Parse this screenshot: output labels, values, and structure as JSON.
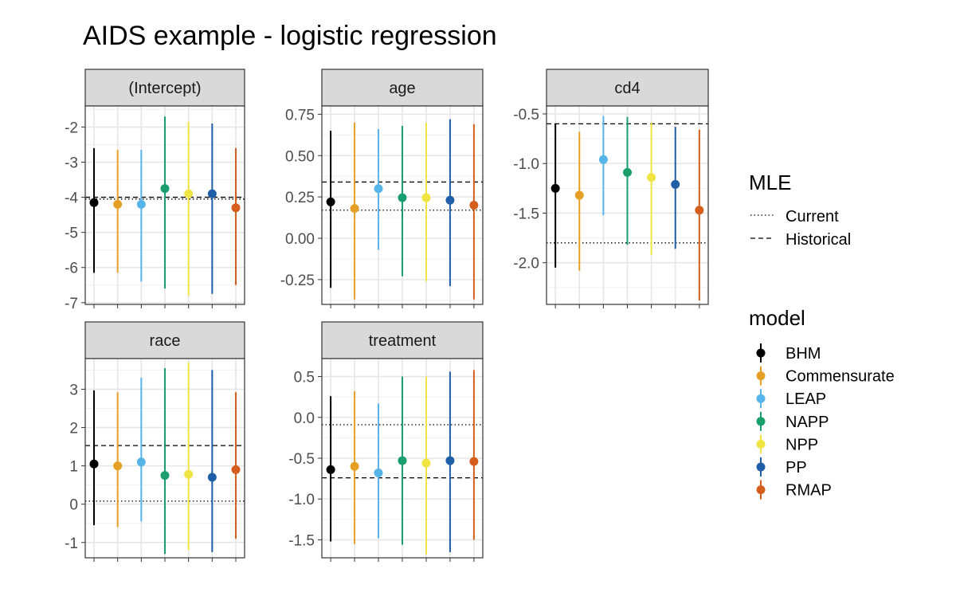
{
  "title": "AIDS example - logistic regression",
  "chart_data": {
    "type": "interval-dot",
    "title": "AIDS example - logistic regression",
    "xlabel": "",
    "ylabel": "",
    "legend_position": "right",
    "models": [
      {
        "name": "BHM",
        "color": "#000000"
      },
      {
        "name": "Commensurate",
        "color": "#E69F25"
      },
      {
        "name": "LEAP",
        "color": "#56B4E9"
      },
      {
        "name": "NAPP",
        "color": "#1A9E6E"
      },
      {
        "name": "NPP",
        "color": "#F0E442"
      },
      {
        "name": "PP",
        "color": "#1F5FA8"
      },
      {
        "name": "RMAP",
        "color": "#D55E1C"
      }
    ],
    "mle_legend": {
      "title": "MLE",
      "items": [
        {
          "name": "Current",
          "linetype": "dotted"
        },
        {
          "name": "Historical",
          "linetype": "dashed"
        }
      ]
    },
    "model_legend_title": "model",
    "panels": [
      {
        "label": "(Intercept)",
        "ylim": [
          -7.05,
          -1.4
        ],
        "ticks": [
          -2,
          -3,
          -4,
          -5,
          -6,
          -7
        ],
        "tick_labels": [
          "-2",
          "-3",
          "-4",
          "-5",
          "-6",
          "-7"
        ],
        "mle_historical": -4.0,
        "mle_current": -4.05,
        "estimates": [
          -4.15,
          -4.2,
          -4.2,
          -3.75,
          -3.9,
          -3.9,
          -4.3
        ],
        "lower": [
          -6.15,
          -6.15,
          -6.4,
          -6.6,
          -6.8,
          -6.75,
          -6.5
        ],
        "upper": [
          -2.6,
          -2.65,
          -2.65,
          -1.7,
          -1.85,
          -1.9,
          -2.6
        ]
      },
      {
        "label": "age",
        "ylim": [
          -0.4,
          0.8
        ],
        "ticks": [
          0.75,
          0.5,
          0.25,
          0.0,
          -0.25
        ],
        "tick_labels": [
          "0.75",
          "0.50",
          "0.25",
          "0.00",
          "-0.25"
        ],
        "mle_historical": 0.34,
        "mle_current": 0.17,
        "estimates": [
          0.22,
          0.18,
          0.3,
          0.245,
          0.245,
          0.23,
          0.2
        ],
        "lower": [
          -0.3,
          -0.37,
          -0.07,
          -0.23,
          -0.26,
          -0.29,
          -0.37
        ],
        "upper": [
          0.65,
          0.7,
          0.66,
          0.68,
          0.7,
          0.72,
          0.69
        ]
      },
      {
        "label": "cd4",
        "ylim": [
          -2.42,
          -0.42
        ],
        "ticks": [
          -0.5,
          -1.0,
          -1.5,
          -2.0
        ],
        "tick_labels": [
          "-0.5",
          "-1.0",
          "-1.5",
          "-2.0"
        ],
        "mle_historical": -0.6,
        "mle_current": -1.8,
        "estimates": [
          -1.25,
          -1.32,
          -0.96,
          -1.09,
          -1.14,
          -1.21,
          -1.47
        ],
        "lower": [
          -2.05,
          -2.08,
          -1.52,
          -1.82,
          -1.92,
          -1.86,
          -2.38
        ],
        "upper": [
          -0.6,
          -0.68,
          -0.52,
          -0.53,
          -0.59,
          -0.63,
          -0.66
        ]
      },
      {
        "label": "race",
        "ylim": [
          -1.4,
          3.8
        ],
        "ticks": [
          3,
          2,
          1,
          0,
          -1
        ],
        "tick_labels": [
          "3",
          "2",
          "1",
          "0",
          "-1"
        ],
        "mle_historical": 1.53,
        "mle_current": 0.08,
        "estimates": [
          1.05,
          1.0,
          1.1,
          0.75,
          0.78,
          0.7,
          0.9
        ],
        "lower": [
          -0.55,
          -0.6,
          -0.45,
          -1.3,
          -1.2,
          -1.25,
          -0.9
        ],
        "upper": [
          2.97,
          2.92,
          3.3,
          3.55,
          3.7,
          3.5,
          2.92
        ]
      },
      {
        "label": "treatment",
        "ylim": [
          -1.72,
          0.72
        ],
        "ticks": [
          0.5,
          0.0,
          -0.5,
          -1.0,
          -1.5
        ],
        "tick_labels": [
          "0.5",
          "0.0",
          "-0.5",
          "-1.0",
          "-1.5"
        ],
        "mle_historical": -0.74,
        "mle_current": -0.09,
        "estimates": [
          -0.64,
          -0.6,
          -0.68,
          -0.53,
          -0.56,
          -0.53,
          -0.54
        ],
        "lower": [
          -1.52,
          -1.55,
          -1.48,
          -1.56,
          -1.68,
          -1.65,
          -1.5
        ],
        "upper": [
          0.26,
          0.32,
          0.17,
          0.5,
          0.5,
          0.56,
          0.58
        ]
      }
    ]
  }
}
